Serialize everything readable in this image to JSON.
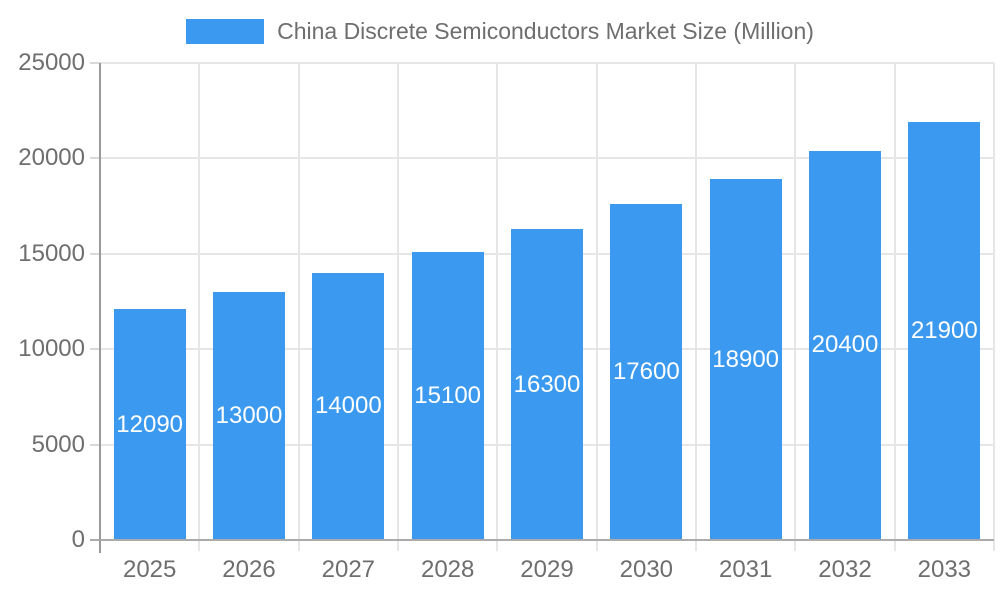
{
  "chart_data": {
    "type": "bar",
    "title": "China Discrete Semiconductors Market Size (Million)",
    "legend": {
      "position": "top",
      "entries": [
        "China Discrete Semiconductors Market Size (Million)"
      ]
    },
    "categories": [
      "2025",
      "2026",
      "2027",
      "2028",
      "2029",
      "2030",
      "2031",
      "2032",
      "2033"
    ],
    "values": [
      12090,
      13000,
      14000,
      15100,
      16300,
      17600,
      18900,
      20400,
      21900
    ],
    "value_labels_shown": true,
    "xlabel": "",
    "ylabel": "",
    "ylim": [
      0,
      25000
    ],
    "y_ticks": [
      0,
      5000,
      10000,
      15000,
      20000,
      25000
    ],
    "grid": true,
    "colors": {
      "bar": "#3B9AEF",
      "value_label": "#FFFFFF",
      "axis_text": "#6E6E6E",
      "gridline": "#E6E6E6",
      "tick_mark": "#D9D9D9",
      "axis_line": "#9A9A9A",
      "zero_line": "#ABABAB"
    }
  }
}
